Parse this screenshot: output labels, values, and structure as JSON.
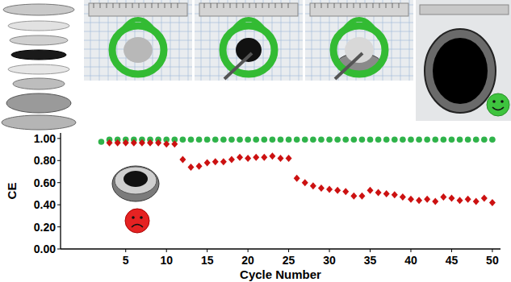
{
  "chart_data": {
    "type": "scatter",
    "x_label": "Cycle Number",
    "y_label": "CE",
    "x": [
      2,
      3,
      4,
      5,
      6,
      7,
      8,
      9,
      10,
      11,
      12,
      13,
      14,
      15,
      16,
      17,
      18,
      19,
      20,
      21,
      22,
      23,
      24,
      25,
      26,
      27,
      28,
      29,
      30,
      31,
      32,
      33,
      34,
      35,
      36,
      37,
      38,
      39,
      40,
      41,
      42,
      43,
      44,
      45,
      46,
      47,
      48,
      49,
      50
    ],
    "series": [
      {
        "color": "#2fb34a",
        "marker": "circle",
        "values": [
          0.97,
          0.99,
          0.99,
          0.99,
          0.99,
          0.99,
          0.99,
          0.99,
          0.99,
          0.99,
          0.99,
          0.99,
          0.99,
          0.99,
          0.99,
          0.99,
          0.99,
          0.99,
          0.99,
          0.99,
          0.99,
          0.99,
          0.99,
          0.99,
          0.99,
          0.99,
          0.99,
          0.99,
          0.99,
          0.99,
          0.99,
          0.99,
          0.99,
          0.99,
          0.99,
          0.99,
          0.99,
          0.99,
          0.99,
          0.99,
          0.99,
          0.99,
          0.99,
          0.99,
          0.99,
          0.99,
          0.99,
          0.99,
          0.99
        ]
      },
      {
        "color": "#cc1111",
        "marker": "diamond",
        "values": [
          null,
          0.96,
          0.96,
          0.96,
          0.96,
          0.96,
          0.96,
          0.96,
          0.95,
          0.95,
          0.81,
          0.74,
          0.75,
          0.78,
          0.79,
          0.79,
          0.81,
          0.83,
          0.82,
          0.83,
          0.83,
          0.84,
          0.82,
          0.82,
          0.64,
          0.6,
          0.57,
          0.55,
          0.54,
          0.53,
          0.52,
          0.48,
          0.48,
          0.53,
          0.51,
          0.5,
          0.49,
          0.47,
          0.45,
          0.44,
          0.45,
          0.43,
          0.47,
          0.46,
          0.44,
          0.45,
          0.43,
          0.46,
          0.42
        ]
      }
    ],
    "xlim": [
      -3,
      51
    ],
    "xticks": [
      5,
      10,
      15,
      20,
      25,
      30,
      35,
      40,
      45,
      50
    ],
    "ylim": [
      0,
      1.05
    ],
    "yticks": [
      {
        "value": 0,
        "label": "0.00"
      },
      {
        "value": 0.2,
        "label": "0.20"
      },
      {
        "value": 0.4,
        "label": "0.40"
      },
      {
        "value": 0.6,
        "label": "0.60"
      },
      {
        "value": 0.8,
        "label": "0.80"
      },
      {
        "value": 1,
        "label": "1.00"
      }
    ],
    "grid": false
  }
}
